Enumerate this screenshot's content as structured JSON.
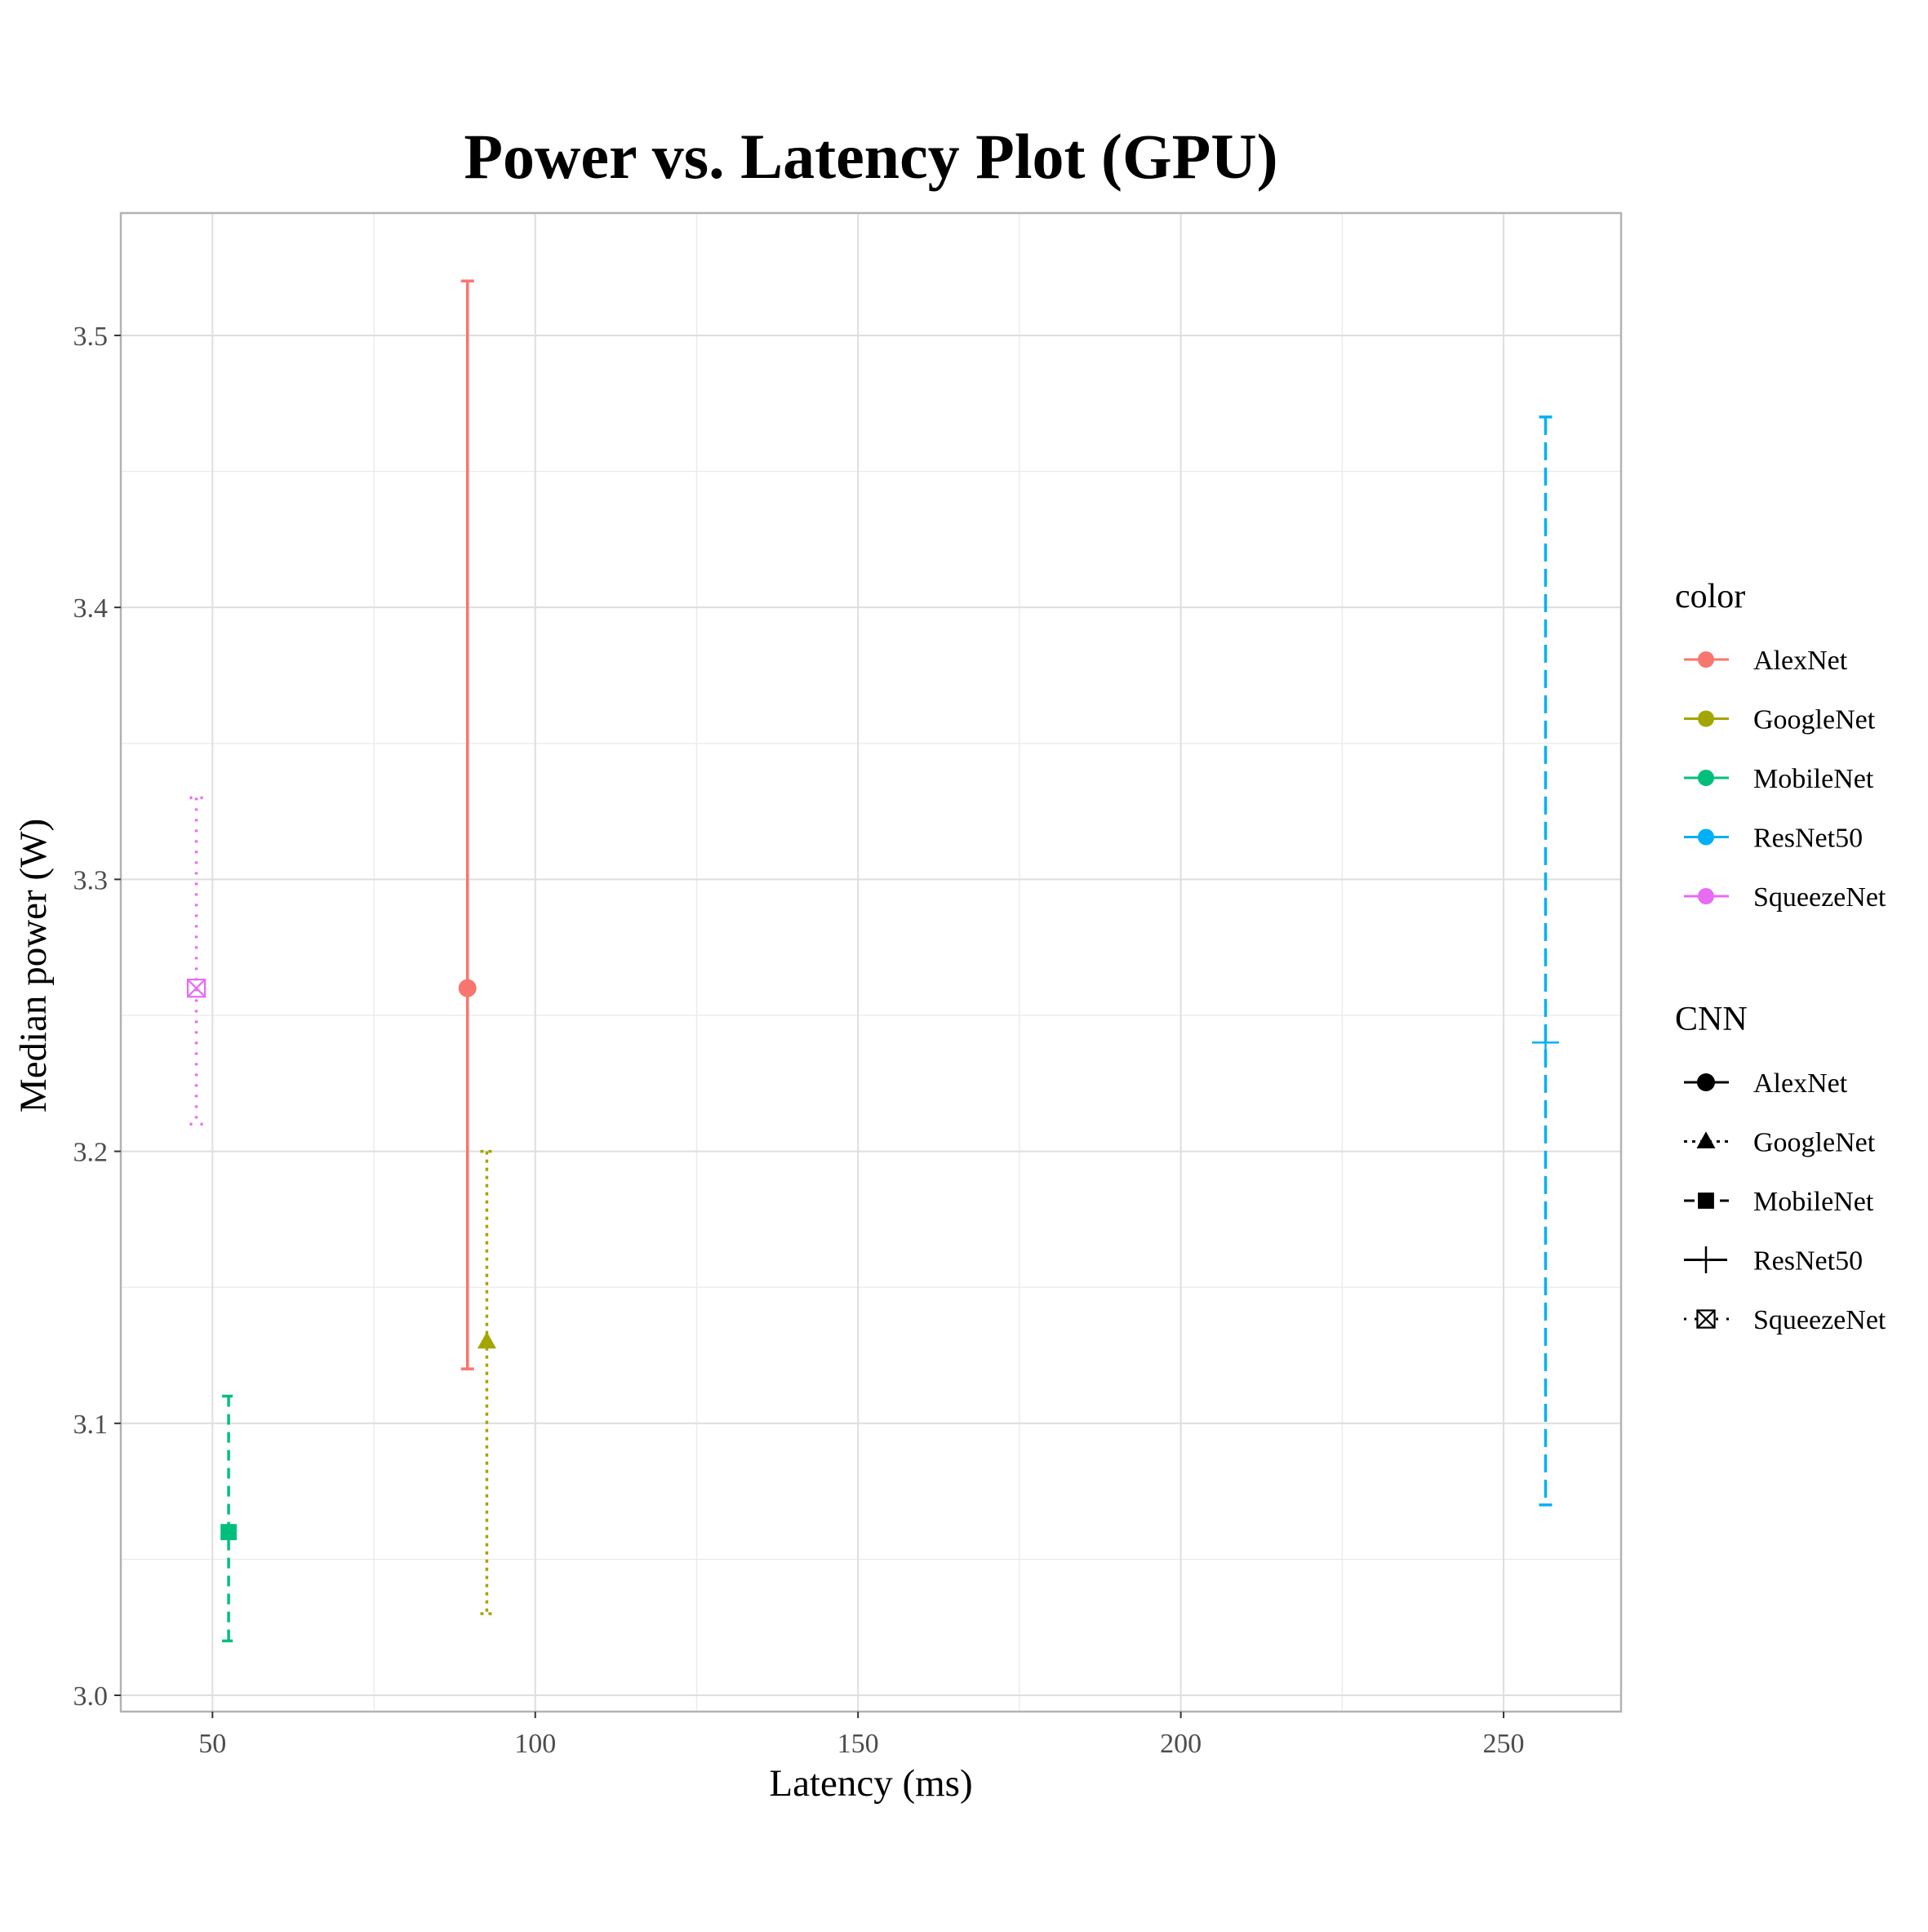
{
  "chart_data": {
    "type": "scatter",
    "title": "Power vs. Latency Plot (GPU)",
    "xlabel": "Latency (ms)",
    "ylabel": "Median power (W)",
    "xlim": [
      35.8,
      268.2
    ],
    "ylim": [
      2.994,
      3.545
    ],
    "x_ticks": [
      50,
      100,
      150,
      200,
      250
    ],
    "x_tick_labels": [
      "50",
      "100",
      "150",
      "200",
      "250"
    ],
    "y_ticks": [
      3.0,
      3.1,
      3.2,
      3.3,
      3.4,
      3.5
    ],
    "y_tick_labels": [
      "3.0",
      "3.1",
      "3.2",
      "3.3",
      "3.4",
      "3.5"
    ],
    "grid": true,
    "error_bars": true,
    "series": [
      {
        "name": "AlexNet",
        "color": "#F8766D",
        "marker": "circle",
        "linetype": "solid",
        "x": 89.5,
        "y": 3.26,
        "ymin": 3.12,
        "ymax": 3.52
      },
      {
        "name": "GoogleNet",
        "color": "#A3A500",
        "marker": "triangle",
        "linetype": "dotted-dash",
        "x": 92.5,
        "y": 3.13,
        "ymin": 3.03,
        "ymax": 3.2
      },
      {
        "name": "MobileNet",
        "color": "#00BF7D",
        "marker": "square",
        "linetype": "dashed",
        "x": 52.5,
        "y": 3.06,
        "ymin": 3.02,
        "ymax": 3.11
      },
      {
        "name": "ResNet50",
        "color": "#00B0F6",
        "marker": "plus",
        "linetype": "longdash",
        "x": 256.5,
        "y": 3.24,
        "ymin": 3.07,
        "ymax": 3.47
      },
      {
        "name": "SqueezeNet",
        "color": "#E76BF3",
        "marker": "boxcross",
        "linetype": "dotted",
        "x": 47.5,
        "y": 3.26,
        "ymin": 3.21,
        "ymax": 3.33
      }
    ],
    "legends": [
      {
        "title": "color",
        "kind": "color",
        "placement": "right",
        "entries": [
          "AlexNet",
          "GoogleNet",
          "MobileNet",
          "ResNet50",
          "SqueezeNet"
        ]
      },
      {
        "title": "CNN",
        "kind": "shape",
        "placement": "right",
        "entries": [
          "AlexNet",
          "GoogleNet",
          "MobileNet",
          "ResNet50",
          "SqueezeNet"
        ]
      }
    ]
  }
}
